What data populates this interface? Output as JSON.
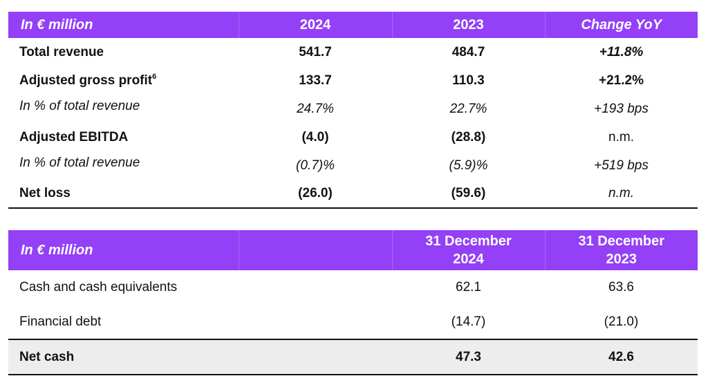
{
  "table1": {
    "headers": [
      "In € million",
      "2024",
      "2023",
      "Change YoY"
    ],
    "rows": [
      {
        "label": "Total revenue",
        "sup": "",
        "v2024": "541.7",
        "v2023": "484.7",
        "change": "+11.8%"
      },
      {
        "label": "Adjusted gross profit",
        "sup": "6",
        "v2024": "133.7",
        "v2023": "110.3",
        "change": "+21.2%"
      },
      {
        "label": "In % of total revenue",
        "sup": "",
        "v2024": "24.7%",
        "v2023": "22.7%",
        "change": "+193 bps"
      },
      {
        "label": "Adjusted EBITDA",
        "sup": "",
        "v2024": "(4.0)",
        "v2023": "(28.8)",
        "change": "n.m."
      },
      {
        "label": "In % of total revenue",
        "sup": "",
        "v2024": "(0.7)%",
        "v2023": "(5.9)%",
        "change": "+519 bps"
      },
      {
        "label": "Net loss",
        "sup": "",
        "v2024": "(26.0)",
        "v2023": "(59.6)",
        "change": "n.m."
      }
    ]
  },
  "table2": {
    "headers": {
      "label": "In € million",
      "col1_line1": "31 December",
      "col1_line2": "2024",
      "col2_line1": "31 December",
      "col2_line2": "2023"
    },
    "rows": [
      {
        "label": "Cash and cash equivalents",
        "v2024": "62.1",
        "v2023": "63.6"
      },
      {
        "label": "Financial debt",
        "v2024": "(14.7)",
        "v2023": "(21.0)"
      },
      {
        "label": "Net cash",
        "v2024": "47.3",
        "v2023": "42.6"
      }
    ]
  },
  "colors": {
    "header_bg": "#9340f7",
    "header_text": "#ffffff",
    "total_row_bg": "#ededed"
  }
}
